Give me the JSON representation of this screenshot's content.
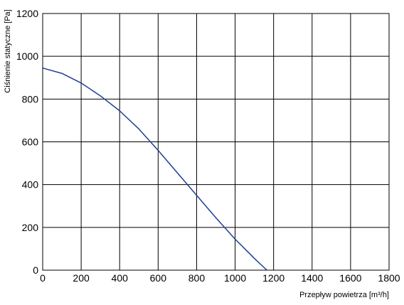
{
  "chart_data": {
    "type": "line",
    "title": "",
    "xlabel": "Przepływ powietrza [m³/h]",
    "ylabel": "Ciśnienie statyczne [Pa]",
    "xlim": [
      0,
      1800
    ],
    "ylim": [
      0,
      1200
    ],
    "x_ticks": [
      "0",
      "200",
      "400",
      "600",
      "800",
      "1000",
      "1200",
      "1400",
      "1600",
      "1800"
    ],
    "y_ticks": [
      "0",
      "200",
      "400",
      "600",
      "800",
      "1000",
      "1200"
    ],
    "grid": true,
    "series": [
      {
        "color": "#1f3f94",
        "x": [
          0,
          100,
          200,
          300,
          400,
          500,
          600,
          700,
          800,
          900,
          1000,
          1100,
          1165
        ],
        "y": [
          945,
          920,
          875,
          815,
          745,
          660,
          560,
          455,
          350,
          245,
          145,
          55,
          0
        ]
      }
    ]
  }
}
